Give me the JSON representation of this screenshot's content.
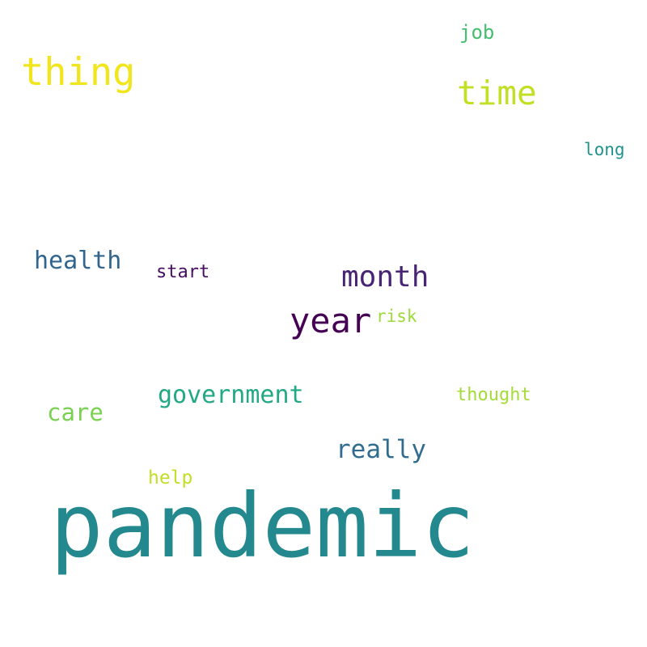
{
  "words": [
    {
      "id": "pandemic",
      "text": "pandemic",
      "color": "#23898e"
    },
    {
      "id": "thing",
      "text": "thing",
      "color": "#f1e51d"
    },
    {
      "id": "time",
      "text": "time",
      "color": "#c2df23"
    },
    {
      "id": "year",
      "text": "year",
      "color": "#440154"
    },
    {
      "id": "month",
      "text": "month",
      "color": "#482475"
    },
    {
      "id": "health",
      "text": "health",
      "color": "#32658e"
    },
    {
      "id": "government",
      "text": "government",
      "color": "#22a884"
    },
    {
      "id": "really",
      "text": "really",
      "color": "#2f6c8e"
    },
    {
      "id": "care",
      "text": "care",
      "color": "#7ad151"
    },
    {
      "id": "job",
      "text": "job",
      "color": "#44bf70"
    },
    {
      "id": "long",
      "text": "long",
      "color": "#20928c"
    },
    {
      "id": "start",
      "text": "start",
      "color": "#470d60"
    },
    {
      "id": "risk",
      "text": "risk",
      "color": "#9dd93b"
    },
    {
      "id": "thought",
      "text": "thought",
      "color": "#a5db36"
    },
    {
      "id": "help",
      "text": "help",
      "color": "#c0df25"
    }
  ]
}
